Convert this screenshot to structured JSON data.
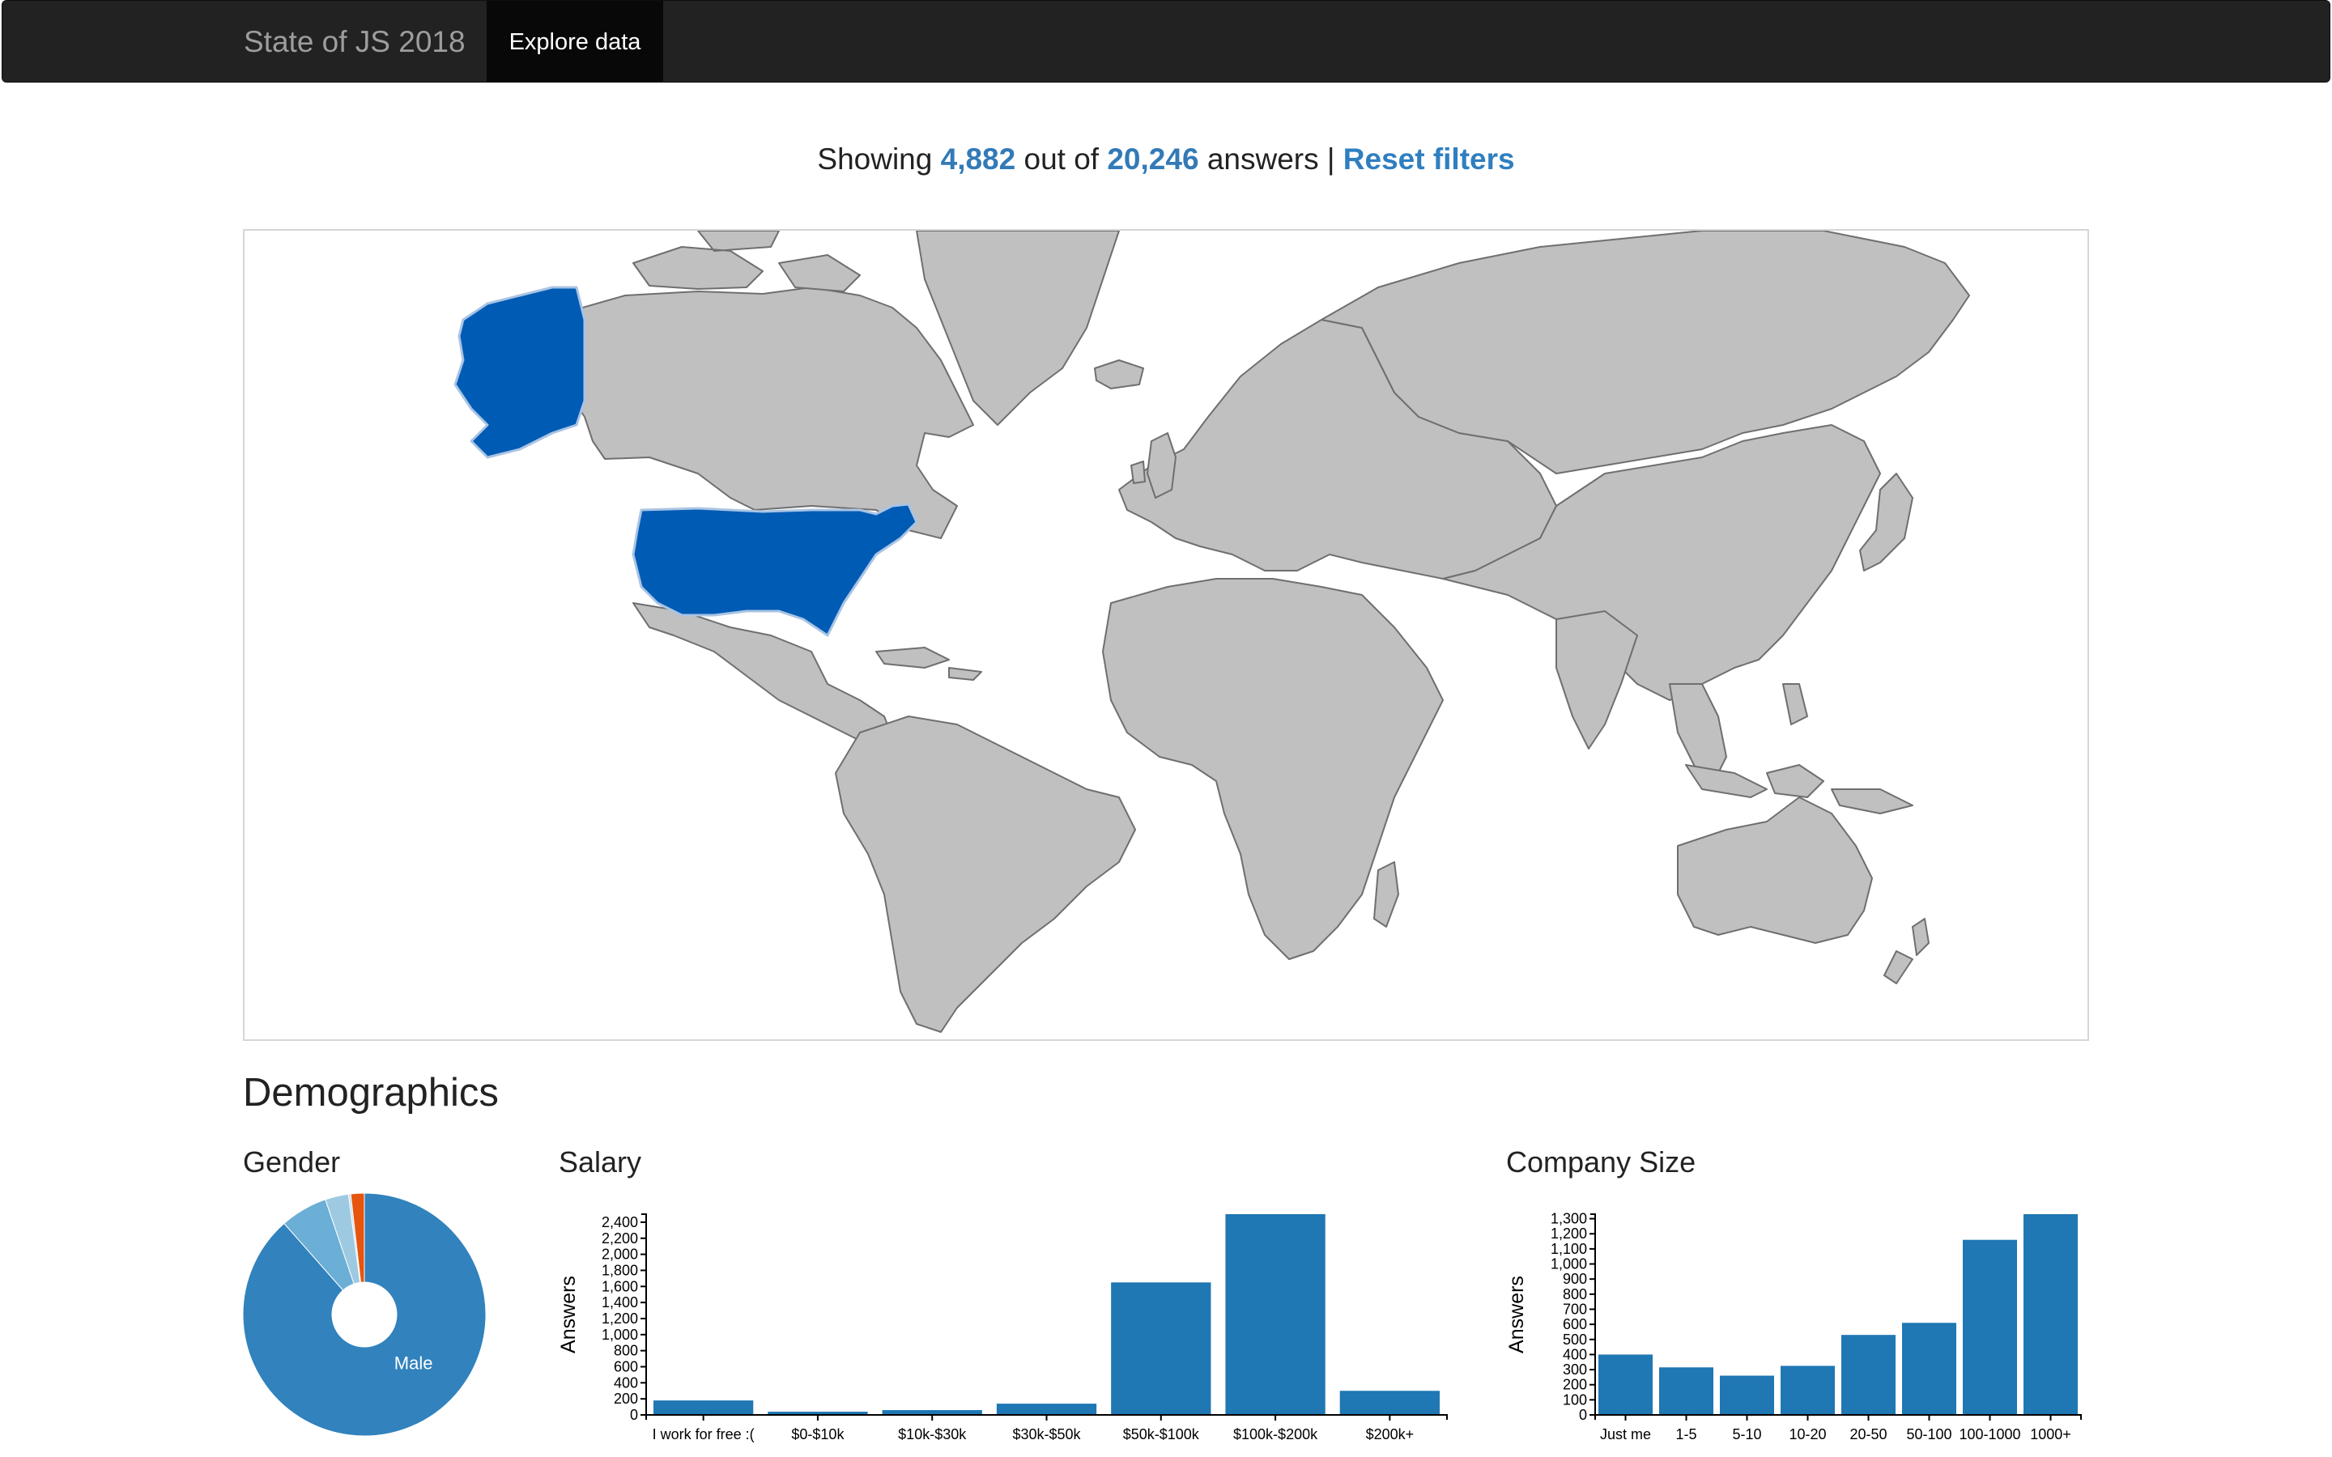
{
  "navbar": {
    "brand": "State of JS 2018",
    "explore_label": "Explore data"
  },
  "summary": {
    "prefix": "Showing",
    "filtered_count": "4,882",
    "middle": "out of",
    "total_count": "20,246",
    "suffix": "answers |",
    "reset_label": "Reset filters"
  },
  "map": {
    "highlighted_country": "United States",
    "highlight_color": "#005bb5",
    "land_color": "#c0c0c0",
    "border_color": "#6f6f6f"
  },
  "demographics": {
    "title": "Demographics"
  },
  "chart_data": [
    {
      "id": "gender",
      "type": "pie",
      "title": "Gender",
      "slices": [
        {
          "label": "Male",
          "value": 88.5,
          "color": "#3182bd"
        },
        {
          "label": "",
          "value": 6.3,
          "color": "#6baed6"
        },
        {
          "label": "",
          "value": 3.1,
          "color": "#9ecae1"
        },
        {
          "label": "",
          "value": 0.3,
          "color": "#c6dbef"
        },
        {
          "label": "",
          "value": 1.8,
          "color": "#e6550d"
        }
      ]
    },
    {
      "id": "salary",
      "type": "bar",
      "title": "Salary",
      "ylabel": "Answers",
      "categories": [
        "I work for free :(",
        "$0-$10k",
        "$10k-$30k",
        "$30k-$50k",
        "$50k-$100k",
        "$100k-$200k",
        "$200k+"
      ],
      "values": [
        180,
        40,
        60,
        140,
        1650,
        2500,
        300
      ],
      "ylim": [
        0,
        2500
      ],
      "yticks": [
        0,
        200,
        400,
        600,
        800,
        1000,
        1200,
        1400,
        1600,
        1800,
        2000,
        2200,
        2400
      ],
      "color": "#1f77b4"
    },
    {
      "id": "company",
      "type": "bar",
      "title": "Company Size",
      "ylabel": "Answers",
      "categories": [
        "Just me",
        "1-5",
        "5-10",
        "10-20",
        "20-50",
        "50-100",
        "100-1000",
        "1000+"
      ],
      "values": [
        400,
        315,
        260,
        325,
        530,
        610,
        1160,
        1330
      ],
      "ylim": [
        0,
        1330
      ],
      "yticks": [
        0,
        100,
        200,
        300,
        400,
        500,
        600,
        700,
        800,
        900,
        1000,
        1100,
        1200,
        1300
      ],
      "color": "#1f77b4"
    }
  ]
}
